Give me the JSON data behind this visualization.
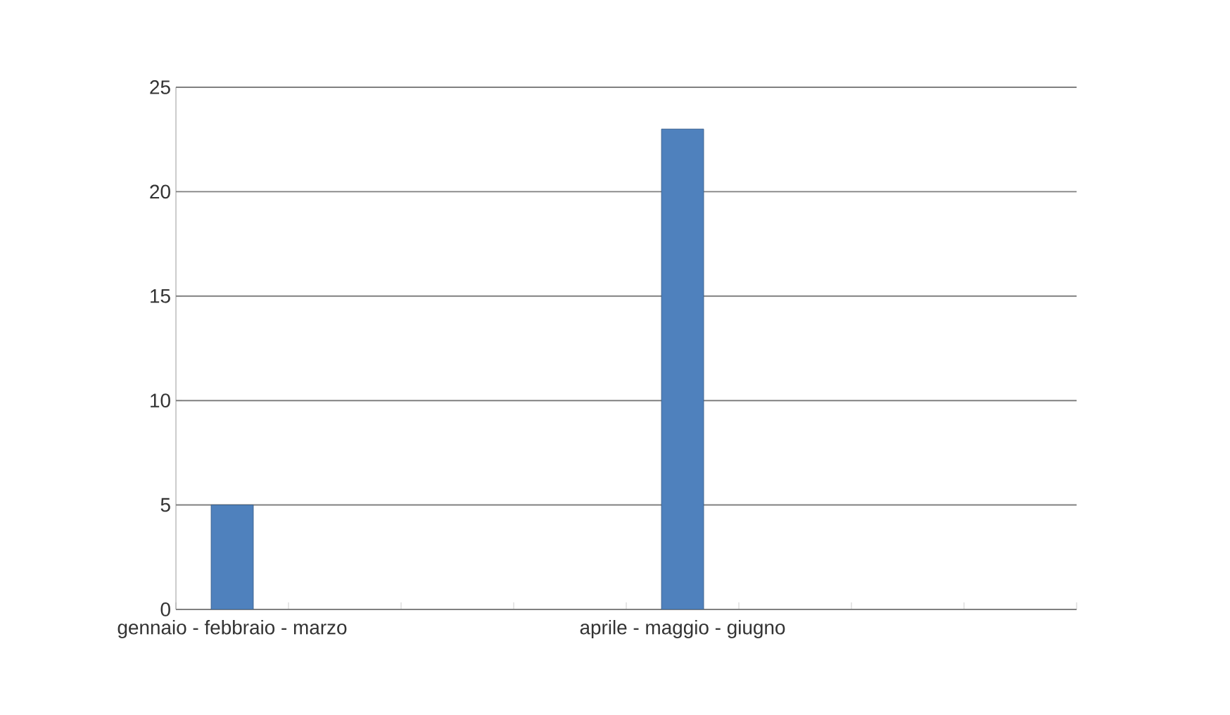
{
  "chart_data": {
    "type": "bar",
    "categories": [
      "gennaio - febbraio - marzo",
      null,
      null,
      null,
      "aprile - maggio - giugno",
      null,
      null,
      null
    ],
    "values": [
      5,
      null,
      null,
      null,
      23,
      null,
      null,
      null
    ],
    "color": "#4f81bd",
    "ylim": [
      0,
      25
    ],
    "yticks": [
      0,
      5,
      10,
      15,
      20,
      25
    ],
    "grid": "y"
  }
}
